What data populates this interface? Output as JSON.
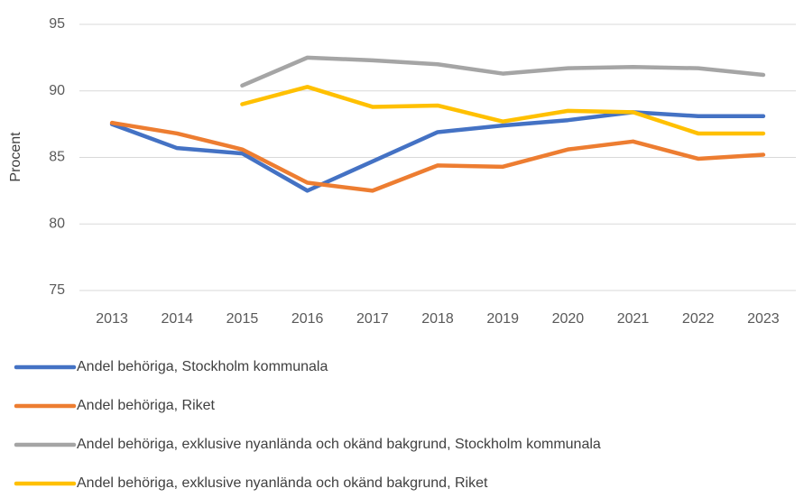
{
  "chart_data": {
    "type": "line",
    "y_label": "Procent",
    "categories": [
      "2013",
      "2014",
      "2015",
      "2016",
      "2017",
      "2018",
      "2019",
      "2020",
      "2021",
      "2022",
      "2023"
    ],
    "series": [
      {
        "name": "Andel behöriga, Stockholm kommunala",
        "color": "#4472c4",
        "values": [
          87.5,
          85.7,
          85.3,
          82.5,
          84.7,
          86.9,
          87.4,
          87.8,
          88.4,
          88.1,
          88.1
        ]
      },
      {
        "name": "Andel behöriga, Riket",
        "color": "#ed7d31",
        "values": [
          87.6,
          86.8,
          85.6,
          83.1,
          82.5,
          84.4,
          84.3,
          85.6,
          86.2,
          84.9,
          85.2
        ]
      },
      {
        "name": "Andel behöriga, exklusive nyanlända och okänd bakgrund, Stockholm kommunala",
        "color": "#a5a5a5",
        "values": [
          null,
          null,
          90.4,
          92.5,
          92.3,
          92.0,
          91.3,
          91.7,
          91.8,
          91.7,
          91.2
        ]
      },
      {
        "name": "Andel behöriga, exklusive nyanlända och okänd bakgrund, Riket",
        "color": "#ffc000",
        "values": [
          null,
          null,
          89.0,
          90.3,
          88.8,
          88.9,
          87.7,
          88.5,
          88.4,
          86.8,
          86.8
        ]
      }
    ],
    "ylim": [
      75,
      95
    ],
    "yticks": [
      75,
      80,
      85,
      90,
      95
    ],
    "grid": true,
    "legend": "bottom"
  }
}
